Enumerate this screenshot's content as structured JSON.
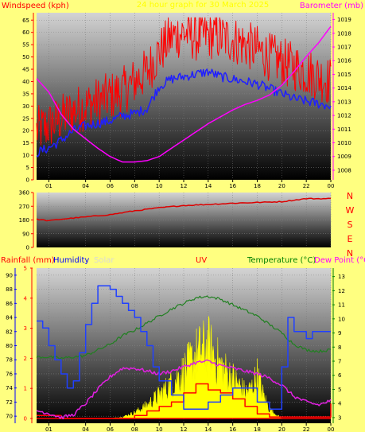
{
  "header": {
    "title": "24 hour graph for 30 March 2025",
    "title_color": "#ffff00"
  },
  "chart_data": [
    {
      "type": "line",
      "panel": "wind_pressure",
      "xlabel": "",
      "x_ticks": [
        "01",
        "04",
        "06",
        "08",
        "10",
        "12",
        "14",
        "16",
        "18",
        "20",
        "22",
        "00"
      ],
      "x_tick_hours": [
        1,
        4,
        6,
        8,
        10,
        12,
        14,
        16,
        18,
        20,
        22,
        24
      ],
      "y_left": {
        "label": "Windspeed (kph)",
        "color": "#ff0000",
        "range": [
          0,
          68
        ],
        "ticks": [
          0,
          5,
          10,
          15,
          20,
          25,
          30,
          35,
          40,
          45,
          50,
          55,
          60,
          65
        ]
      },
      "y_right": {
        "label": "Barometer (mb)",
        "color": "#ff00ff",
        "range": [
          1007.3,
          1019.5
        ],
        "ticks": [
          1008,
          1009,
          1010,
          1011,
          1012,
          1013,
          1014,
          1015,
          1016,
          1017,
          1018,
          1019
        ]
      },
      "grid": true,
      "series": [
        {
          "name": "Gust",
          "axis": "left",
          "color": "#ff0000",
          "x": [
            0,
            1,
            2,
            3,
            4,
            5,
            6,
            7,
            8,
            9,
            10,
            11,
            12,
            13,
            14,
            15,
            16,
            17,
            18,
            19,
            20,
            21,
            22,
            23,
            24
          ],
          "y": [
            20,
            22,
            25,
            28,
            30,
            32,
            34,
            36,
            40,
            44,
            52,
            58,
            60,
            58,
            59,
            58,
            57,
            55,
            53,
            50,
            48,
            46,
            44,
            42,
            40
          ]
        },
        {
          "name": "Wind Speed",
          "axis": "left",
          "color": "#2020ff",
          "x": [
            0,
            1,
            2,
            3,
            4,
            5,
            6,
            7,
            8,
            9,
            10,
            11,
            12,
            13,
            14,
            15,
            16,
            17,
            18,
            19,
            20,
            21,
            22,
            23,
            24
          ],
          "y": [
            11,
            13,
            16,
            20,
            22,
            23,
            24,
            26,
            27,
            29,
            38,
            41,
            42,
            43,
            44,
            42,
            41,
            40,
            39,
            37,
            35,
            33,
            32,
            31,
            30
          ]
        },
        {
          "name": "Pressure",
          "axis": "right",
          "color": "#ff00ff",
          "x": [
            0,
            1,
            2,
            3,
            4,
            5,
            6,
            7,
            8,
            9,
            10,
            11,
            12,
            13,
            14,
            15,
            16,
            17,
            18,
            19,
            20,
            21,
            22,
            23,
            24
          ],
          "y": [
            1014.7,
            1013.7,
            1012.1,
            1011.0,
            1010.3,
            1009.6,
            1009.0,
            1008.6,
            1008.6,
            1008.7,
            1009.0,
            1009.6,
            1010.2,
            1010.8,
            1011.4,
            1011.9,
            1012.4,
            1012.8,
            1013.1,
            1013.5,
            1014.2,
            1015.2,
            1016.3,
            1017.3,
            1018.5
          ]
        }
      ]
    },
    {
      "type": "line",
      "panel": "wind_direction",
      "y_left": {
        "label": "",
        "range": [
          0,
          360
        ],
        "ticks": [
          0,
          90,
          180,
          270,
          360
        ]
      },
      "direction_labels": [
        "N",
        "W",
        "S",
        "E",
        "N"
      ],
      "direction_color": "#ff0000",
      "grid": true,
      "series": [
        {
          "name": "Wind Direction",
          "color": "#dd0000",
          "x": [
            0,
            1,
            2,
            4,
            6,
            8,
            10,
            12,
            14,
            16,
            18,
            20,
            21,
            22,
            24
          ],
          "y": [
            185,
            175,
            185,
            200,
            215,
            240,
            260,
            275,
            282,
            290,
            295,
            300,
            310,
            320,
            320
          ]
        }
      ]
    },
    {
      "type": "line",
      "panel": "rain_humidity_temp",
      "legend": [
        {
          "label": "Rainfall (mm)",
          "color": "#ff0000"
        },
        {
          "label": "Humidity",
          "color": "#0000ff"
        },
        {
          "label": "Solar",
          "color": "#d8d8d8"
        },
        {
          "label": "UV",
          "color": "#ff0000"
        },
        {
          "label": "Temperature (°C)",
          "color": "#008000"
        },
        {
          "label": "Dew Point (°C",
          "color": "#ff00ff"
        }
      ],
      "y_left_humidity": {
        "color": "#0000ff",
        "range": [
          69,
          91
        ],
        "ticks": [
          70,
          72,
          74,
          76,
          78,
          80,
          82,
          84,
          86,
          88,
          90
        ]
      },
      "y_left_rain": {
        "color": "#ff0000",
        "range": [
          0,
          5
        ],
        "ticks": [
          0,
          1,
          2,
          3,
          4,
          5
        ]
      },
      "y_right": {
        "label": "Temperature (°C)",
        "color": "#008000",
        "range": [
          2.6,
          13.6
        ],
        "ticks": [
          3,
          4,
          5,
          6,
          7,
          8,
          9,
          10,
          11,
          12,
          13
        ]
      },
      "grid": true,
      "series": [
        {
          "name": "Humidity",
          "axis": "humidity",
          "color": "#2040ff",
          "step": true,
          "x": [
            0,
            0.5,
            1,
            1.5,
            2,
            2.5,
            3,
            3.5,
            4,
            4.5,
            5,
            5.5,
            6,
            6.5,
            7,
            7.5,
            8,
            8.5,
            9,
            9.5,
            10,
            10.5,
            11,
            12,
            13,
            14,
            15,
            16,
            17,
            18,
            19,
            20,
            20.5,
            21,
            22,
            22.5,
            23,
            24
          ],
          "y": [
            83.5,
            82.5,
            80,
            78,
            76,
            74,
            75,
            79,
            83,
            86,
            88.5,
            88.5,
            88,
            87,
            86,
            85,
            84,
            82,
            80,
            77,
            75,
            75,
            73,
            71,
            71,
            72,
            73,
            74,
            74,
            72,
            71,
            77,
            84,
            82,
            81,
            82,
            82,
            82
          ]
        },
        {
          "name": "Temperature",
          "axis": "right",
          "color": "#208020",
          "x": [
            0,
            1,
            2,
            3,
            4,
            5,
            6,
            7,
            8,
            9,
            10,
            11,
            12,
            13,
            14,
            15,
            16,
            17,
            18,
            19,
            20,
            21,
            22,
            23,
            24
          ],
          "y": [
            7.3,
            7.3,
            7.2,
            7.3,
            7.4,
            7.8,
            8.2,
            8.8,
            9.2,
            9.7,
            10.2,
            10.7,
            11.1,
            11.5,
            11.6,
            11.4,
            11.0,
            10.6,
            10.2,
            9.6,
            9.0,
            8.2,
            7.8,
            7.7,
            7.8
          ]
        },
        {
          "name": "Dew Point",
          "axis": "right",
          "color": "#e020e0",
          "x": [
            0,
            1,
            2,
            3,
            4,
            5,
            6,
            7,
            8,
            9,
            10,
            11,
            12,
            13,
            14,
            15,
            16,
            17,
            18,
            19,
            20,
            21,
            22,
            23,
            24
          ],
          "y": [
            3.5,
            3.3,
            3.0,
            3.2,
            4.0,
            5.0,
            5.9,
            6.5,
            6.5,
            6.3,
            6.1,
            6.3,
            6.6,
            6.9,
            7.0,
            6.7,
            6.5,
            6.3,
            6.1,
            5.8,
            5.3,
            4.5,
            4.1,
            3.9,
            4.2
          ]
        },
        {
          "name": "UV",
          "axis": "rain",
          "color": "#ff0000",
          "step": true,
          "x": [
            0,
            2,
            6,
            8,
            9,
            10,
            11,
            12,
            13,
            14,
            15,
            16,
            17,
            18,
            19,
            24
          ],
          "y": [
            0.1,
            0,
            0,
            0.1,
            0.25,
            0.4,
            0.55,
            0.85,
            1.15,
            0.95,
            0.85,
            0.65,
            0.4,
            0.15,
            0.05,
            0.5
          ]
        },
        {
          "name": "Solar",
          "axis": "rain",
          "color": "#ffff00",
          "fill": true,
          "x": [
            6,
            7,
            8,
            9,
            10,
            11,
            12,
            13,
            14,
            15,
            16,
            17,
            17.5,
            18,
            18.5,
            19,
            20
          ],
          "y": [
            0,
            0.05,
            0.2,
            0.45,
            0.8,
            1.2,
            1.6,
            2.2,
            2.5,
            1.8,
            1.4,
            0.9,
            1.0,
            1.5,
            0.8,
            0.3,
            0
          ]
        },
        {
          "name": "Rainfall",
          "axis": "rain",
          "color": "#ff0000",
          "x": [
            0,
            24
          ],
          "y": [
            0,
            0
          ]
        }
      ]
    }
  ]
}
